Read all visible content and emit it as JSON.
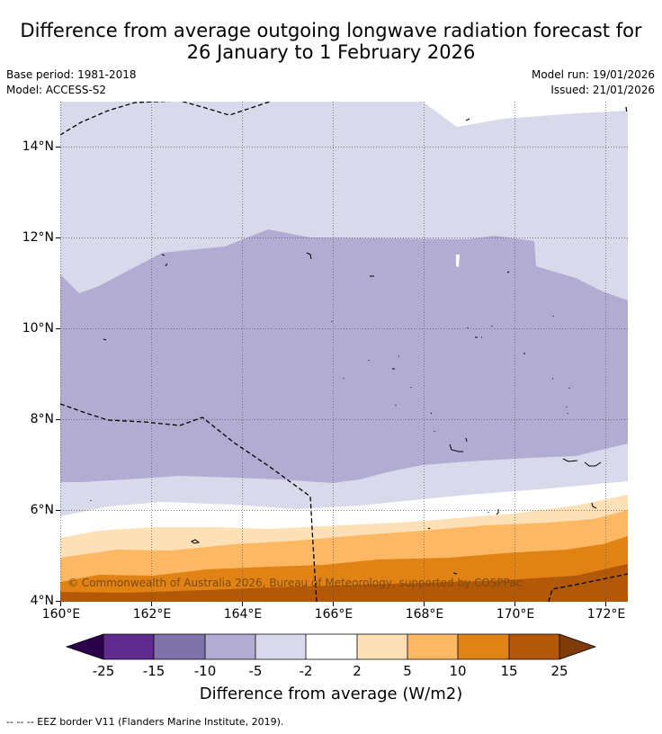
{
  "header": {
    "title_line1": "Difference from average outgoing longwave radiation forecast for",
    "title_line2": "26 January to 1 February 2026",
    "base_period": "Base period: 1981-2018",
    "model": "Model: ACCESS-S2",
    "model_run": "Model run: 19/01/2026",
    "issued": "Issued: 21/01/2026"
  },
  "map": {
    "lat_labels": [
      "14°N",
      "12°N",
      "10°N",
      "8°N",
      "6°N",
      "4°N"
    ],
    "lon_labels": [
      "160°E",
      "162°E",
      "164°E",
      "166°E",
      "168°E",
      "170°E",
      "172°E"
    ],
    "copyright": "© Commonwealth of Australia 2026, Bureau of Meteorology, supported by COSPPac"
  },
  "colorbar": {
    "tick_labels": [
      "-25",
      "-15",
      "-10",
      "-5",
      "-2",
      "2",
      "5",
      "10",
      "15",
      "25"
    ],
    "title": "Difference from average (W/m2)",
    "colors": {
      "lt_neg25": "#2d004b",
      "neg25_neg15": "#5e2a8e",
      "neg15_neg10": "#8073ac",
      "neg10_neg5": "#b2abd2",
      "neg5_neg2": "#d8daeb",
      "neg2_2": "#ffffff",
      "2_5": "#fee0b6",
      "5_10": "#fdb863",
      "10_15": "#e08214",
      "15_25": "#b35806",
      "gt_25": "#7f3b08"
    }
  },
  "footnote": "--  --  -- EEZ border V11 (Flanders Marine Institute, 2019)."
}
